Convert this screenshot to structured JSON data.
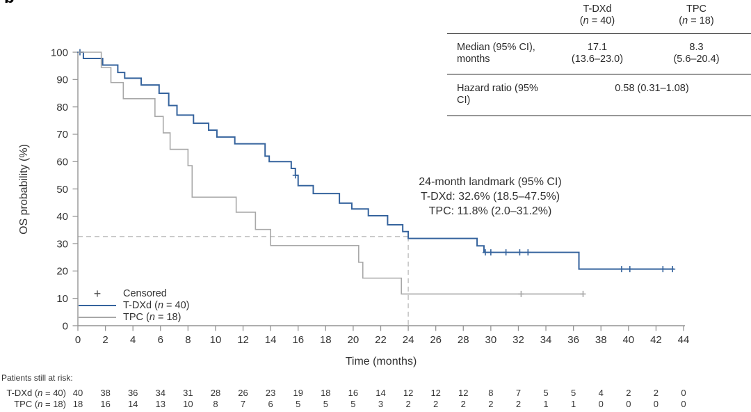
{
  "panel_label": "b",
  "axes": {
    "x_label": "Time (months)",
    "y_label": "OS probability (%)"
  },
  "chart_data": {
    "type": "line",
    "subtype": "kaplan-meier-step",
    "title": "",
    "xlabel": "Time (months)",
    "ylabel": "OS probability (%)",
    "xlim": [
      0,
      44
    ],
    "ylim": [
      0,
      100
    ],
    "x_ticks": [
      0,
      2,
      4,
      6,
      8,
      10,
      12,
      14,
      16,
      18,
      20,
      22,
      24,
      26,
      28,
      30,
      32,
      34,
      36,
      38,
      40,
      42,
      44
    ],
    "y_ticks": [
      0,
      10,
      20,
      30,
      40,
      50,
      60,
      70,
      80,
      90,
      100
    ],
    "grid": false,
    "legend_position": "lower-left-inside",
    "landmark_lines": {
      "x": 24,
      "y": 32.6,
      "style": "dashed"
    },
    "series": [
      {
        "name": "T-DXd (n = 40)",
        "color": "#35639d",
        "steps": [
          [
            0,
            100
          ],
          [
            0.4,
            97.7
          ],
          [
            1.8,
            95.3
          ],
          [
            2.9,
            92.6
          ],
          [
            3.4,
            90.5
          ],
          [
            4.6,
            88
          ],
          [
            5.9,
            85
          ],
          [
            6.6,
            80.5
          ],
          [
            7.2,
            77
          ],
          [
            8.4,
            74
          ],
          [
            9.5,
            71.5
          ],
          [
            10.1,
            69
          ],
          [
            11.4,
            66.5
          ],
          [
            13.6,
            62
          ],
          [
            13.9,
            60
          ],
          [
            15.5,
            57.5
          ],
          [
            15.8,
            55
          ],
          [
            16.0,
            51.2
          ],
          [
            17.1,
            48.3
          ],
          [
            19.0,
            44.8
          ],
          [
            19.9,
            42.7
          ],
          [
            21.1,
            40.2
          ],
          [
            22.5,
            36.9
          ],
          [
            23.6,
            34.4
          ],
          [
            24.0,
            31.9
          ],
          [
            29.0,
            29.2
          ],
          [
            29.5,
            26.8
          ],
          [
            36.4,
            20.7
          ],
          [
            43.3,
            20.7
          ]
        ],
        "censors": [
          [
            0.15,
            100
          ],
          [
            15.8,
            55
          ],
          [
            29.6,
            26.8
          ],
          [
            30.0,
            26.8
          ],
          [
            31.1,
            26.8
          ],
          [
            32.1,
            26.8
          ],
          [
            32.7,
            26.8
          ],
          [
            39.5,
            20.7
          ],
          [
            40.1,
            20.7
          ],
          [
            42.5,
            20.7
          ],
          [
            43.2,
            20.7
          ]
        ]
      },
      {
        "name": "TPC (n = 18)",
        "color": "#a8a8a8",
        "steps": [
          [
            0,
            100
          ],
          [
            1.7,
            94.4
          ],
          [
            2.4,
            88.9
          ],
          [
            3.3,
            83
          ],
          [
            5.6,
            76.5
          ],
          [
            6.2,
            70.5
          ],
          [
            6.7,
            64.5
          ],
          [
            8.0,
            58.5
          ],
          [
            8.3,
            47
          ],
          [
            11.5,
            41.5
          ],
          [
            12.9,
            35.2
          ],
          [
            14.0,
            29.3
          ],
          [
            20.4,
            23.2
          ],
          [
            20.7,
            17.4
          ],
          [
            23.5,
            11.6
          ],
          [
            36.7,
            11.6
          ]
        ],
        "censors": [
          [
            32.2,
            11.6
          ],
          [
            36.7,
            11.6
          ]
        ]
      }
    ]
  },
  "stats_table": {
    "col_headers": [
      "T-DXd\n(n = 40)",
      "TPC\n(n = 18)"
    ],
    "rows": [
      {
        "label": "Median (95% CI),\nmonths",
        "values": [
          "17.1\n(13.6–23.0)",
          "8.3\n(5.6–20.4)"
        ]
      },
      {
        "label": "Hazard ratio (95% CI)",
        "value_span": "0.58 (0.31–1.08)"
      }
    ]
  },
  "annotation": {
    "line1": "24-month landmark (95% CI)",
    "line2": "T-DXd: 32.6% (18.5–47.5%)",
    "line3": "TPC: 11.8% (2.0–31.2%)"
  },
  "legend": {
    "censored_symbol": "+",
    "censored_label": "Censored",
    "series": [
      {
        "label": "T-DXd (n = 40)",
        "color": "#35639d"
      },
      {
        "label": "TPC (n = 18)",
        "color": "#a8a8a8"
      }
    ]
  },
  "risk_table": {
    "title": "Patients still at risk:",
    "times": [
      0,
      2,
      4,
      6,
      8,
      10,
      12,
      14,
      16,
      18,
      20,
      22,
      24,
      26,
      28,
      30,
      32,
      34,
      36,
      38,
      40,
      42,
      44
    ],
    "rows": [
      {
        "label": "T-DXd (n = 40)",
        "values": [
          40,
          38,
          36,
          34,
          31,
          28,
          26,
          23,
          19,
          18,
          16,
          14,
          12,
          12,
          12,
          8,
          7,
          5,
          5,
          4,
          2,
          2,
          0
        ]
      },
      {
        "label": "TPC (n = 18)",
        "values": [
          18,
          16,
          14,
          13,
          10,
          8,
          7,
          6,
          5,
          5,
          5,
          3,
          2,
          2,
          2,
          2,
          2,
          1,
          1,
          0,
          0,
          0,
          0
        ]
      }
    ]
  },
  "colors": {
    "tdxd_blue": "#35639d",
    "tpc_gray": "#a8a8a8",
    "axis_gray": "#949494",
    "dashed_gray": "#bdbdbd",
    "text": "#333333",
    "table_rule": "#1c1c1c"
  }
}
